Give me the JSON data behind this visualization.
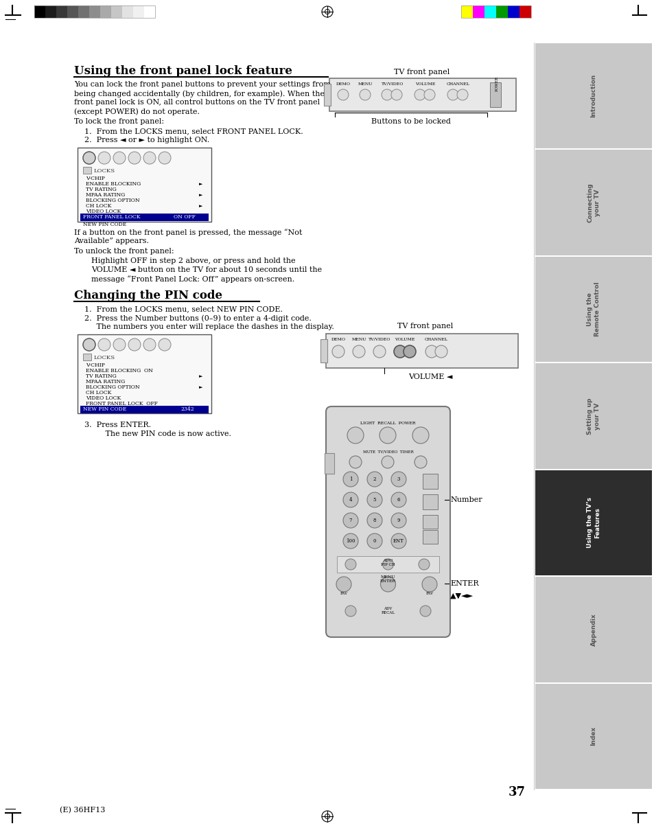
{
  "page_num": "37",
  "footer_text": "(E) 36HF13",
  "title1": "Using the front panel lock feature",
  "title2": "Changing the PIN code",
  "body_text1_lines": [
    "You can lock the front panel buttons to prevent your settings from",
    "being changed accidentally (by children, for example). When the",
    "front panel lock is ON, all control buttons on the TV front panel",
    "(except POWER) do not operate."
  ],
  "body_text2": "To lock the front panel:",
  "step1_1": "1.  From the LOCKS menu, select FRONT PANEL LOCK.",
  "step1_2": "2.  Press ◄ or ► to highlight ON.",
  "body_text3_lines": [
    "If a button on the front panel is pressed, the message “Not",
    "Available” appears."
  ],
  "body_text4": "To unlock the front panel:",
  "body_text5_lines": [
    "Highlight OFF in step 2 above, or press and hold the",
    "VOLUME ◄ button on the TV for about 10 seconds until the",
    "message “Front Panel Lock: Off” appears on-screen."
  ],
  "step2_1": "1.  From the LOCKS menu, select NEW PIN CODE.",
  "step2_2a": "2.  Press the Number buttons (0–9) to enter a 4-digit code.",
  "step2_2b": "     The numbers you enter will replace the dashes in the display.",
  "step3a": "3.  Press ENTER.",
  "step3b": "     The new PIN code is now active.",
  "sidebar_labels": [
    "Introduction",
    "Connecting\nyour TV",
    "Using the\nRemote Control",
    "Setting up\nyour TV",
    "Using the TV’s\nFeatures",
    "Appendix",
    "Index"
  ],
  "active_sidebar_idx": 4,
  "tv_front_panel_label1": "TV front panel",
  "tv_front_panel_label2": "TV front panel",
  "buttons_locked_label": "Buttons to be locked",
  "volume_label": "VOLUME ◄",
  "number_label": "Number",
  "enter_label": "ENTER",
  "nav_label": "▲▼◄►",
  "background_color": "#ffffff"
}
